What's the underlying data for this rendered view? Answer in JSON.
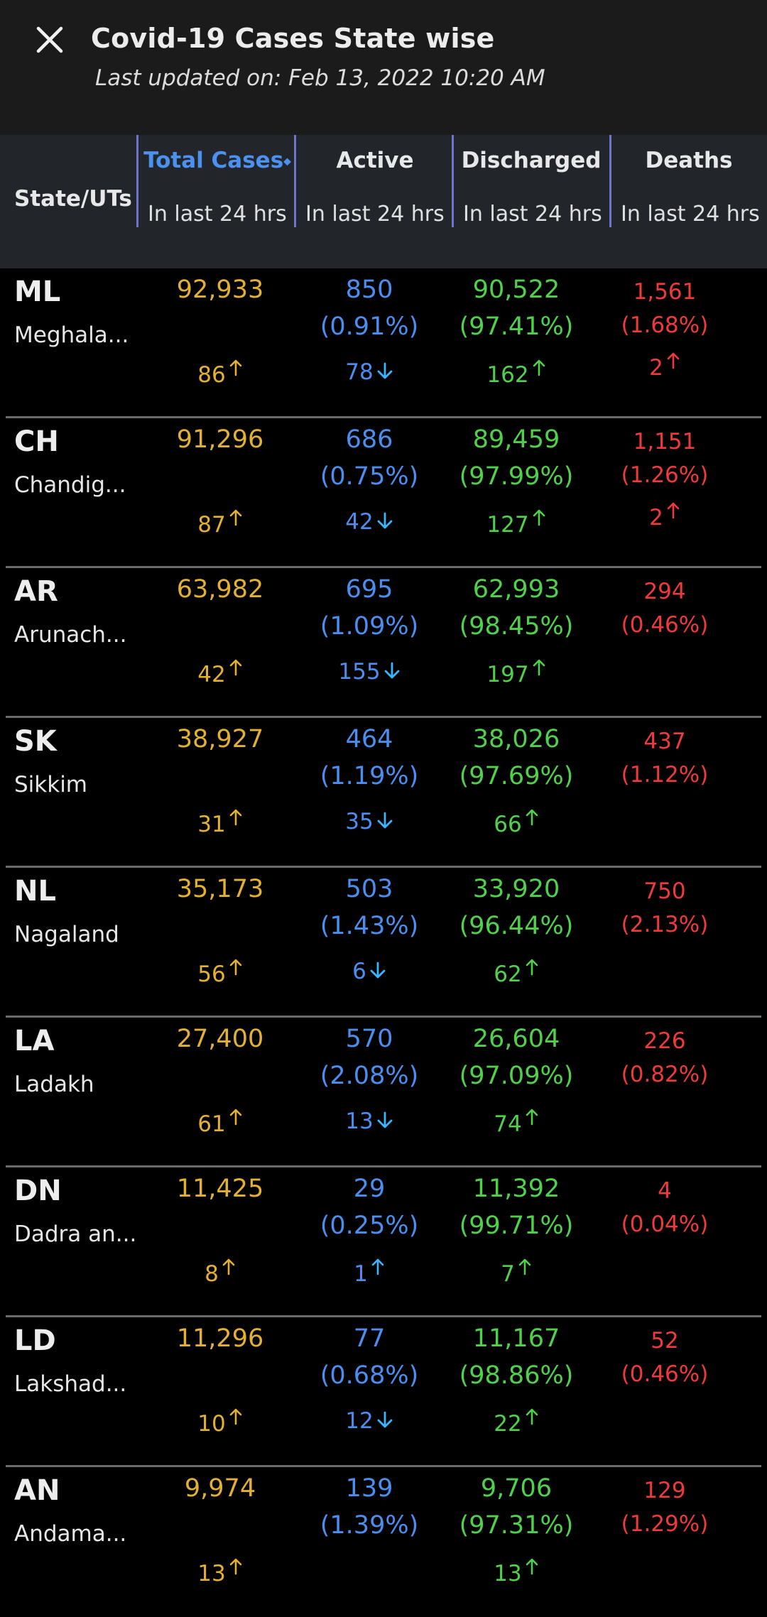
{
  "header": {
    "title": "Covid-19 Cases State wise",
    "updated": "Last updated on: Feb 13, 2022 10:20 AM"
  },
  "columns": {
    "state": "State/UTs",
    "total": "Total Cases",
    "active": "Active",
    "discharged": "Discharged",
    "deaths": "Deaths",
    "sub": "In last 24 hrs"
  },
  "rows": [
    {
      "code": "ML",
      "name": "Meghala...",
      "total": "92,933",
      "total_delta": "86",
      "active": "850",
      "active_pct": "(0.91%)",
      "active_delta": "78",
      "active_dir": "down",
      "discharged": "90,522",
      "discharged_pct": "(97.41%)",
      "discharged_delta": "162",
      "deaths": "1,561",
      "deaths_pct": "(1.68%)",
      "deaths_delta": "2"
    },
    {
      "code": "CH",
      "name": "Chandig...",
      "total": "91,296",
      "total_delta": "87",
      "active": "686",
      "active_pct": "(0.75%)",
      "active_delta": "42",
      "active_dir": "down",
      "discharged": "89,459",
      "discharged_pct": "(97.99%)",
      "discharged_delta": "127",
      "deaths": "1,151",
      "deaths_pct": "(1.26%)",
      "deaths_delta": "2"
    },
    {
      "code": "AR",
      "name": "Arunach...",
      "total": "63,982",
      "total_delta": "42",
      "active": "695",
      "active_pct": "(1.09%)",
      "active_delta": "155",
      "active_dir": "down",
      "discharged": "62,993",
      "discharged_pct": "(98.45%)",
      "discharged_delta": "197",
      "deaths": "294",
      "deaths_pct": "(0.46%)",
      "deaths_delta": ""
    },
    {
      "code": "SK",
      "name": "Sikkim",
      "total": "38,927",
      "total_delta": "31",
      "active": "464",
      "active_pct": "(1.19%)",
      "active_delta": "35",
      "active_dir": "down",
      "discharged": "38,026",
      "discharged_pct": "(97.69%)",
      "discharged_delta": "66",
      "deaths": "437",
      "deaths_pct": "(1.12%)",
      "deaths_delta": ""
    },
    {
      "code": "NL",
      "name": "Nagaland",
      "total": "35,173",
      "total_delta": "56",
      "active": "503",
      "active_pct": "(1.43%)",
      "active_delta": "6",
      "active_dir": "down",
      "discharged": "33,920",
      "discharged_pct": "(96.44%)",
      "discharged_delta": "62",
      "deaths": "750",
      "deaths_pct": "(2.13%)",
      "deaths_delta": ""
    },
    {
      "code": "LA",
      "name": "Ladakh",
      "total": "27,400",
      "total_delta": "61",
      "active": "570",
      "active_pct": "(2.08%)",
      "active_delta": "13",
      "active_dir": "down",
      "discharged": "26,604",
      "discharged_pct": "(97.09%)",
      "discharged_delta": "74",
      "deaths": "226",
      "deaths_pct": "(0.82%)",
      "deaths_delta": ""
    },
    {
      "code": "DN",
      "name": "Dadra an...",
      "total": "11,425",
      "total_delta": "8",
      "active": "29",
      "active_pct": "(0.25%)",
      "active_delta": "1",
      "active_dir": "up",
      "discharged": "11,392",
      "discharged_pct": "(99.71%)",
      "discharged_delta": "7",
      "deaths": "4",
      "deaths_pct": "(0.04%)",
      "deaths_delta": ""
    },
    {
      "code": "LD",
      "name": "Lakshad...",
      "total": "11,296",
      "total_delta": "10",
      "active": "77",
      "active_pct": "(0.68%)",
      "active_delta": "12",
      "active_dir": "down",
      "discharged": "11,167",
      "discharged_pct": "(98.86%)",
      "discharged_delta": "22",
      "deaths": "52",
      "deaths_pct": "(0.46%)",
      "deaths_delta": ""
    },
    {
      "code": "AN",
      "name": "Andama...",
      "total": "9,974",
      "total_delta": "13",
      "active": "139",
      "active_pct": "(1.39%)",
      "active_delta": "",
      "active_dir": "down",
      "discharged": "9,706",
      "discharged_pct": "(97.31%)",
      "discharged_delta": "13",
      "deaths": "129",
      "deaths_pct": "(1.29%)",
      "deaths_delta": ""
    }
  ],
  "colors": {
    "total": "#e4b031",
    "active": "#4a8ff0",
    "discharged": "#4fd14a",
    "deaths": "#f03a3a",
    "accent": "#6e74c9"
  },
  "icons": {
    "close": "close-icon",
    "up": "arrow-up-icon",
    "down": "arrow-down-icon"
  }
}
